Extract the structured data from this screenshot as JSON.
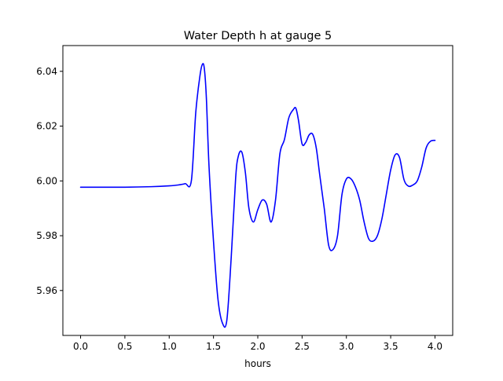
{
  "chart_data": {
    "type": "line",
    "title": "Water Depth h at gauge 5",
    "xlabel": "hours",
    "ylabel": "",
    "xlim": [
      -0.2,
      4.2
    ],
    "ylim": [
      5.9436,
      6.0494
    ],
    "xticks": [
      0.0,
      0.5,
      1.0,
      1.5,
      2.0,
      2.5,
      3.0,
      3.5,
      4.0
    ],
    "xtick_labels": [
      "0.0",
      "0.5",
      "1.0",
      "1.5",
      "2.0",
      "2.5",
      "3.0",
      "3.5",
      "4.0"
    ],
    "yticks": [
      5.96,
      5.98,
      6.0,
      6.02,
      6.04
    ],
    "ytick_labels": [
      "5.96",
      "5.98",
      "6.00",
      "6.02",
      "6.04"
    ],
    "grid": false,
    "series": [
      {
        "color": "#0000ff",
        "x": [
          0.0,
          0.2,
          0.5,
          0.8,
          1.0,
          1.1,
          1.18,
          1.25,
          1.3,
          1.35,
          1.38,
          1.4,
          1.42,
          1.45,
          1.5,
          1.55,
          1.6,
          1.65,
          1.7,
          1.75,
          1.78,
          1.82,
          1.86,
          1.9,
          1.95,
          2.0,
          2.05,
          2.1,
          2.15,
          2.2,
          2.25,
          2.3,
          2.35,
          2.4,
          2.43,
          2.46,
          2.5,
          2.54,
          2.58,
          2.62,
          2.66,
          2.7,
          2.75,
          2.8,
          2.85,
          2.9,
          2.95,
          3.0,
          3.05,
          3.1,
          3.15,
          3.2,
          3.25,
          3.3,
          3.35,
          3.4,
          3.45,
          3.5,
          3.55,
          3.6,
          3.65,
          3.7,
          3.75,
          3.8,
          3.85,
          3.9,
          3.95,
          4.0
        ],
        "y": [
          5.9977,
          5.9977,
          5.9977,
          5.9979,
          5.9982,
          5.9985,
          5.999,
          6.0,
          6.025,
          6.039,
          6.0428,
          6.04,
          6.03,
          6.005,
          5.978,
          5.957,
          5.9482,
          5.949,
          5.972,
          6.001,
          6.009,
          6.0105,
          6.003,
          5.99,
          5.985,
          5.9895,
          5.993,
          5.9915,
          5.985,
          5.993,
          6.01,
          6.015,
          6.023,
          6.026,
          6.0265,
          6.022,
          6.0135,
          6.014,
          6.0168,
          6.017,
          6.012,
          6.002,
          5.99,
          5.9765,
          5.975,
          5.98,
          5.995,
          6.0007,
          6.0008,
          5.998,
          5.993,
          5.985,
          5.979,
          5.978,
          5.98,
          5.986,
          5.995,
          6.004,
          6.0095,
          6.0085,
          6.0005,
          5.9981,
          5.9985,
          6.0,
          6.005,
          6.012,
          6.0145,
          6.0148
        ]
      }
    ]
  }
}
